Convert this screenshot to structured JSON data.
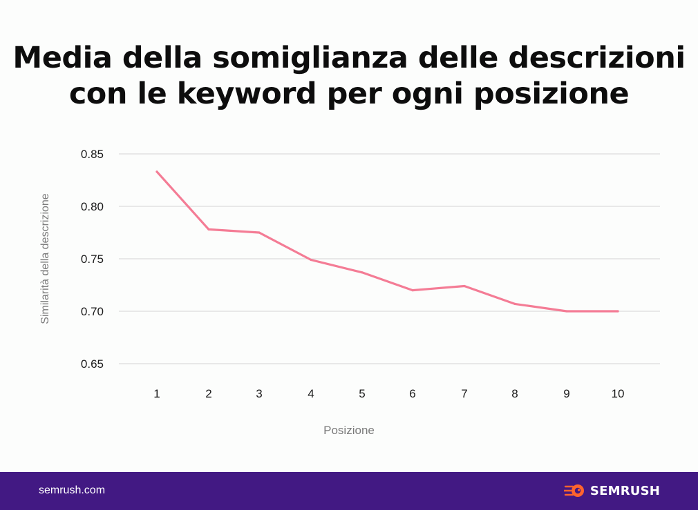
{
  "title_lines": [
    "Media della somiglianza delle descrizioni",
    "con le keyword per ogni posizione"
  ],
  "chart_data": {
    "type": "line",
    "x": [
      "1",
      "2",
      "3",
      "4",
      "5",
      "6",
      "7",
      "8",
      "9",
      "10"
    ],
    "series": [
      {
        "values": [
          0.833,
          0.778,
          0.775,
          0.749,
          0.737,
          0.72,
          0.724,
          0.707,
          0.7,
          0.7
        ]
      }
    ],
    "xlabel": "Posizione",
    "ylabel": "Similarità della descrizione",
    "ylim": [
      0.65,
      0.85
    ],
    "yticks": [
      "0.85",
      "0.80",
      "0.75",
      "0.70",
      "0.65"
    ],
    "grid": true,
    "colors": {
      "line": "#f47c95",
      "grid": "#dcdcdc"
    }
  },
  "footer": {
    "site": "semrush.com",
    "brand": "SEMRUSH",
    "logo_icon": "semrush-fire-logo",
    "colors": {
      "background": "#421983",
      "logo": "#ff642d"
    }
  }
}
